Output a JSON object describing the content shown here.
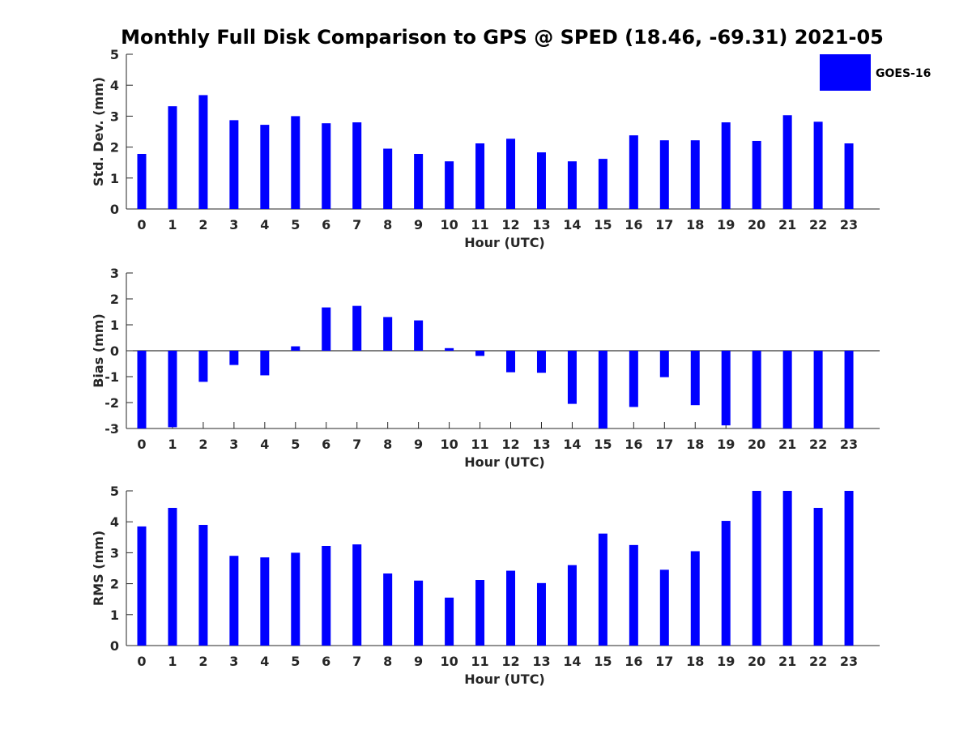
{
  "title": "Monthly Full Disk Comparison to GPS @ SPED (18.46, -69.31) 2021-05",
  "legend": {
    "label": "GOES-16",
    "color": "#0000ff"
  },
  "chart_data": [
    {
      "type": "bar",
      "xlabel": "Hour (UTC)",
      "ylabel": "Std. Dev. (mm)",
      "ylim": [
        0,
        5
      ],
      "yticks": [
        0,
        1,
        2,
        3,
        4,
        5
      ],
      "categories": [
        "0",
        "1",
        "2",
        "3",
        "4",
        "5",
        "6",
        "7",
        "8",
        "9",
        "10",
        "11",
        "12",
        "13",
        "14",
        "15",
        "16",
        "17",
        "18",
        "19",
        "20",
        "21",
        "22",
        "23"
      ],
      "series": [
        {
          "name": "GOES-16",
          "values": [
            1.78,
            3.32,
            3.68,
            2.87,
            2.72,
            3.0,
            2.77,
            2.8,
            1.95,
            1.78,
            1.54,
            2.12,
            2.27,
            1.83,
            1.54,
            1.62,
            2.38,
            2.22,
            2.22,
            2.8,
            2.2,
            3.03,
            2.82,
            2.12
          ]
        }
      ]
    },
    {
      "type": "bar",
      "xlabel": "Hour (UTC)",
      "ylabel": "Bias (mm)",
      "ylim": [
        -3,
        3
      ],
      "yticks": [
        -3,
        -2,
        -1,
        0,
        1,
        2,
        3
      ],
      "categories": [
        "0",
        "1",
        "2",
        "3",
        "4",
        "5",
        "6",
        "7",
        "8",
        "9",
        "10",
        "11",
        "12",
        "13",
        "14",
        "15",
        "16",
        "17",
        "18",
        "19",
        "20",
        "21",
        "22",
        "23"
      ],
      "series": [
        {
          "name": "GOES-16",
          "values": [
            -3.0,
            -2.95,
            -1.2,
            -0.55,
            -0.95,
            0.17,
            1.67,
            1.73,
            1.3,
            1.17,
            0.1,
            -0.2,
            -0.83,
            -0.85,
            -2.05,
            -3.0,
            -2.17,
            -1.02,
            -2.1,
            -2.88,
            -3.0,
            -3.0,
            -3.0,
            -3.0
          ]
        }
      ]
    },
    {
      "type": "bar",
      "xlabel": "Hour (UTC)",
      "ylabel": "RMS (mm)",
      "ylim": [
        0,
        5
      ],
      "yticks": [
        0,
        1,
        2,
        3,
        4,
        5
      ],
      "categories": [
        "0",
        "1",
        "2",
        "3",
        "4",
        "5",
        "6",
        "7",
        "8",
        "9",
        "10",
        "11",
        "12",
        "13",
        "14",
        "15",
        "16",
        "17",
        "18",
        "19",
        "20",
        "21",
        "22",
        "23"
      ],
      "series": [
        {
          "name": "GOES-16",
          "values": [
            3.85,
            4.45,
            3.9,
            2.9,
            2.85,
            3.0,
            3.22,
            3.27,
            2.33,
            2.1,
            1.55,
            2.12,
            2.42,
            2.02,
            2.6,
            3.62,
            3.25,
            2.45,
            3.05,
            4.03,
            5.0,
            5.0,
            4.45,
            5.0
          ]
        }
      ]
    }
  ]
}
